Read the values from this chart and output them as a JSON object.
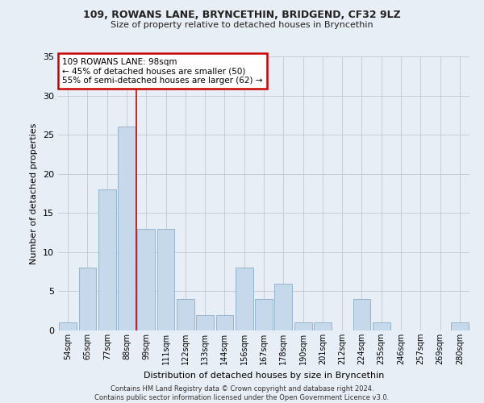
{
  "title1": "109, ROWANS LANE, BRYNCETHIN, BRIDGEND, CF32 9LZ",
  "title2": "Size of property relative to detached houses in Bryncethin",
  "xlabel": "Distribution of detached houses by size in Bryncethin",
  "ylabel": "Number of detached properties",
  "bar_color": "#c5d9ea",
  "bar_edge_color": "#8aaec8",
  "categories": [
    "54sqm",
    "65sqm",
    "77sqm",
    "88sqm",
    "99sqm",
    "111sqm",
    "122sqm",
    "133sqm",
    "144sqm",
    "156sqm",
    "167sqm",
    "178sqm",
    "190sqm",
    "201sqm",
    "212sqm",
    "224sqm",
    "235sqm",
    "246sqm",
    "257sqm",
    "269sqm",
    "280sqm"
  ],
  "values": [
    1,
    8,
    18,
    26,
    13,
    13,
    4,
    2,
    2,
    8,
    4,
    6,
    1,
    1,
    0,
    4,
    1,
    0,
    0,
    0,
    1
  ],
  "ylim": [
    0,
    35
  ],
  "yticks": [
    0,
    5,
    10,
    15,
    20,
    25,
    30,
    35
  ],
  "property_line_x": 3.5,
  "annotation_text": "109 ROWANS LANE: 98sqm\n← 45% of detached houses are smaller (50)\n55% of semi-detached houses are larger (62) →",
  "annotation_box_color": "#ffffff",
  "annotation_border_color": "#cc0000",
  "property_line_color": "#cc0000",
  "background_color": "#e8eef5",
  "footer": "Contains HM Land Registry data © Crown copyright and database right 2024.\nContains public sector information licensed under the Open Government Licence v3.0.",
  "grid_color": "#c5cdd8"
}
